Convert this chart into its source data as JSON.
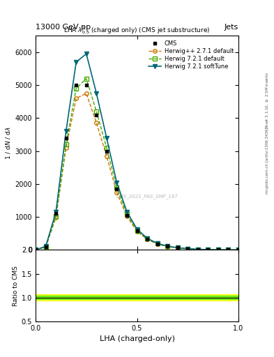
{
  "title_top": "13000 GeV pp",
  "title_right": "Jets",
  "plot_title": "LHA $\\lambda^{1}_{0.5}$ (charged only) (CMS jet substructure)",
  "xlabel": "LHA (charged-only)",
  "ylabel_main": "1 / $\\mathrm{d}N$ / $\\mathrm{d}\\lambda$",
  "ylabel_ratio": "Ratio to CMS",
  "watermark": "CMS_2021_PAS_SMP_187",
  "right_label_top": "Rivet 3.1.10, $\\geq$ 2.5M events",
  "right_label_bot": "mcplots.cern.ch [arXiv:1306.3436]",
  "x_data": [
    0.0,
    0.05,
    0.1,
    0.15,
    0.2,
    0.25,
    0.3,
    0.35,
    0.4,
    0.45,
    0.5,
    0.55,
    0.6,
    0.65,
    0.7,
    0.75,
    0.8,
    0.85,
    0.9,
    0.95,
    1.0
  ],
  "y_cms": [
    0,
    100,
    1100,
    3400,
    5000,
    5000,
    4100,
    3000,
    1850,
    1050,
    580,
    330,
    185,
    108,
    62,
    36,
    18,
    9,
    4,
    2,
    0
  ],
  "y_herwig_pp": [
    0,
    90,
    980,
    3100,
    4600,
    4750,
    3850,
    2850,
    1750,
    1020,
    560,
    320,
    178,
    102,
    60,
    34,
    16,
    8,
    4,
    1,
    0
  ],
  "y_herwig721_def": [
    0,
    95,
    1020,
    3200,
    4900,
    5200,
    4200,
    3100,
    1900,
    1080,
    590,
    340,
    190,
    108,
    64,
    37,
    17,
    9,
    4,
    2,
    0
  ],
  "y_herwig721_soft": [
    0,
    110,
    1150,
    3600,
    5700,
    5950,
    4750,
    3400,
    2050,
    1160,
    630,
    355,
    198,
    112,
    66,
    38,
    18,
    9,
    4,
    2,
    0
  ],
  "color_cms": "#000000",
  "color_herwig_pp": "#cc7700",
  "color_herwig721_def": "#44aa00",
  "color_herwig721_soft": "#006677",
  "ratio_band_yellow": [
    0.93,
    1.07
  ],
  "ratio_band_green": [
    0.96,
    1.04
  ],
  "ylim_main": [
    0,
    6500
  ],
  "ylim_ratio": [
    0.5,
    2.0
  ],
  "xlim": [
    0.0,
    1.0
  ],
  "yticks_ratio": [
    0.5,
    1.0,
    1.5,
    2.0
  ],
  "xticks": [
    0.0,
    0.5,
    1.0
  ]
}
